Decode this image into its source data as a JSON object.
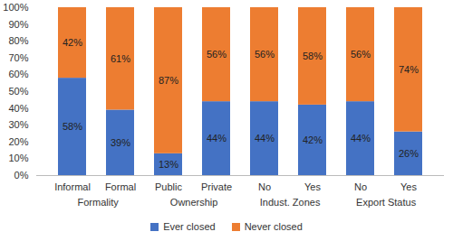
{
  "chart_data": {
    "type": "bar",
    "stacked": true,
    "data_labels": true,
    "grid": false,
    "legend": "bottom",
    "categories": [
      "Informal",
      "Formal",
      "Public",
      "Private",
      "No",
      "Yes",
      "No",
      "Yes"
    ],
    "category_groups": [
      "Formality",
      "Formality",
      "Ownership",
      "Ownership",
      "Indust. Zones",
      "Indust. Zones",
      "Export Status",
      "Export Status"
    ],
    "series": [
      {
        "name": "Ever closed",
        "color": "#4472c4",
        "values": [
          58,
          39,
          13,
          44,
          44,
          42,
          44,
          26
        ],
        "value_labels": [
          "58%",
          "39%",
          "13%",
          "44%",
          "44%",
          "42%",
          "44%",
          "26%"
        ]
      },
      {
        "name": "Never closed",
        "color": "#ed7d31",
        "values": [
          42,
          61,
          87,
          56,
          56,
          58,
          56,
          74
        ],
        "value_labels": [
          "42%",
          "61%",
          "87%",
          "56%",
          "56%",
          "58%",
          "56%",
          "74%"
        ]
      }
    ],
    "ylim": [
      0,
      100
    ],
    "yticks": [
      {
        "value": 0,
        "label": "0%"
      },
      {
        "value": 10,
        "label": "10%"
      },
      {
        "value": 20,
        "label": "20%"
      },
      {
        "value": 30,
        "label": "30%"
      },
      {
        "value": 40,
        "label": "40%"
      },
      {
        "value": 50,
        "label": "50%"
      },
      {
        "value": 60,
        "label": "60%"
      },
      {
        "value": 70,
        "label": "70%"
      },
      {
        "value": 80,
        "label": "80%"
      },
      {
        "value": 90,
        "label": "90%"
      },
      {
        "value": 100,
        "label": "100%"
      }
    ]
  }
}
